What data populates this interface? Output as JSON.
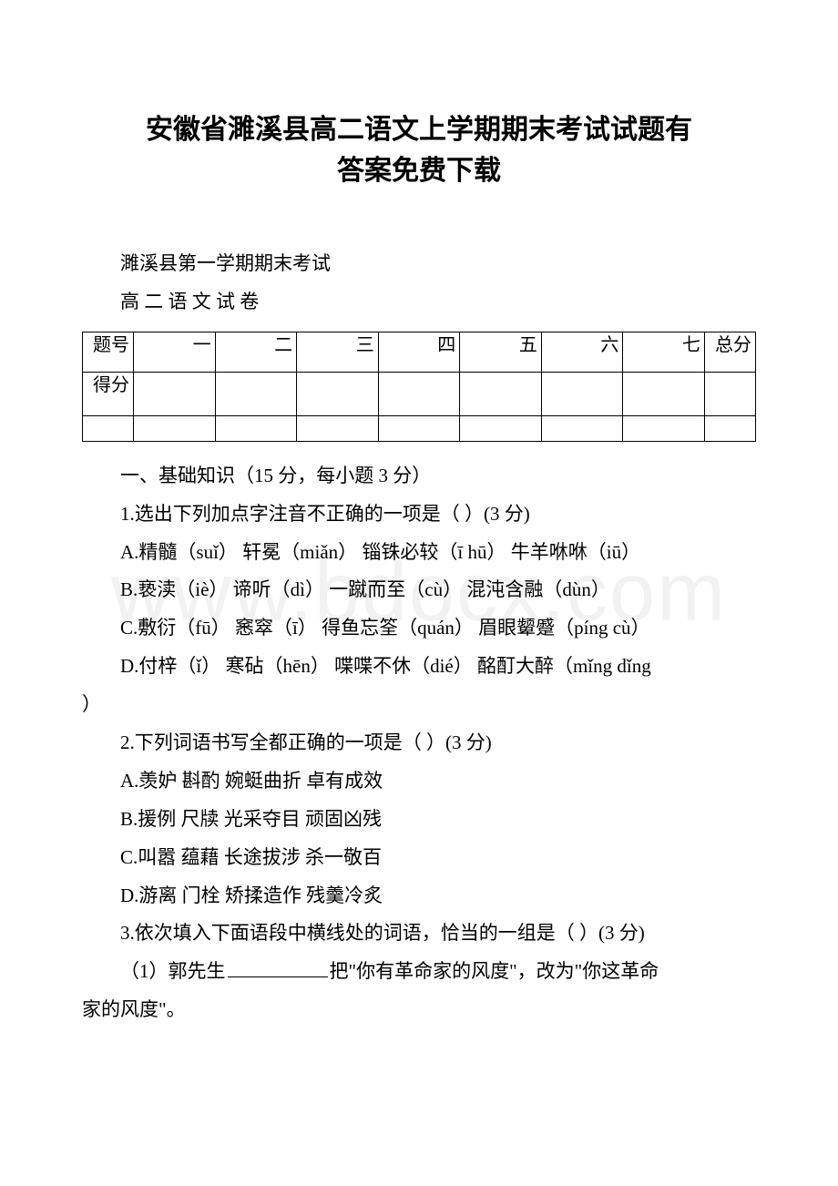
{
  "watermark": "www.bdocx.com",
  "title_line1": "安徽省濉溪县高二语文上学期期末考试试题有",
  "title_line2": "答案免费下载",
  "intro1": "濉溪县第一学期期末考试",
  "intro2": "高 二 语 文 试 卷",
  "score_table": {
    "header_label": "题号",
    "cols": [
      "一",
      "二",
      "三",
      "四",
      "五",
      "六",
      "七"
    ],
    "total_label": "总分",
    "score_label": "得分"
  },
  "section1": "一、基础知识（15 分，每小题 3 分）",
  "q1": {
    "stem": "1.选出下列加点字注音不正确的一项是（  ）(3 分)",
    "a": "A.精髓（suǐ）  轩冕（miǎn）  锱铢必较（ī hū）  牛羊咻咻（iū）",
    "b": "B.亵渎（iè）  谛听（dì）  一蹴而至（cù）  混沌含融（dùn）",
    "c": "C.敷衍（fū）  窸窣（ī）  得鱼忘筌（quán）  眉眼颦蹙（píng cù）",
    "d_prefix": "D.付梓（ǐ）  寒砧（hēn）  喋喋不休（dié）  酩酊大醉（mǐng dǐng",
    "d_suffix": "）"
  },
  "q2": {
    "stem": "2.下列词语书写全都正确的一项是（  ）(3 分)",
    "a": "A.羡妒 斟酌 婉蜓曲折 卓有成效",
    "b": "B.援例 尺牍 光采夺目 顽固凶残",
    "c": "C.叫嚣 蕴藉 长途拔涉 杀一敬百",
    "d": "D.游离 门栓 矫揉造作 残羹冷炙"
  },
  "q3": {
    "stem": "3.依次填入下面语段中横线处的词语，恰当的一组是（  ）(3 分)",
    "line1_before": "（1）郭先生",
    "line1_after": "把\"你有革命家的风度\"，改为\"你这革命",
    "line2": "家的风度\"。"
  }
}
